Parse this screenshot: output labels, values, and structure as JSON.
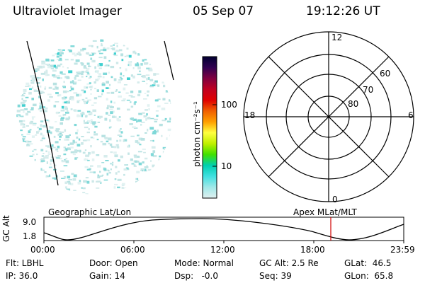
{
  "header": {
    "instrument": "Ultraviolet Imager",
    "date": "05 Sep 07",
    "time": "19:12:26 UT"
  },
  "colorbar": {
    "unit_label": "photon cm⁻²s⁻¹",
    "ticks": [
      "100",
      "10"
    ],
    "stops": [
      "#000030",
      "#300050",
      "#800040",
      "#c00020",
      "#e00000",
      "#f06000",
      "#ffa000",
      "#ffff40",
      "#c0f000",
      "#40e000",
      "#00d0b0",
      "#40e0e0",
      "#a0e8e8",
      "#e0f0f0"
    ]
  },
  "polar": {
    "hour_labels": {
      "top": "12",
      "left": "18",
      "right": "6",
      "bottom": "0"
    },
    "lat_labels": [
      "60",
      "70",
      "80"
    ]
  },
  "timeline": {
    "left_label": "Geographic Lat/Lon",
    "right_label": "Apex MLat/MLT",
    "ylabel": "GC Alt",
    "ymax": "9.0",
    "ymin": "1.8",
    "ticks": [
      "00:00",
      "06:00",
      "12:00",
      "18:00",
      "23:59"
    ],
    "marker_time": "19:12"
  },
  "info": {
    "flt": "Flt: LBHL",
    "ip": "IP: 36.0",
    "door": "Door: Open",
    "gain": "Gain: 14",
    "mode": "Mode: Normal",
    "dsp": "Dsp:   -0.0",
    "gcalt": "GC Alt: 2.5 Re",
    "seq": "Seq: 39",
    "glat": "GLat:  46.5",
    "glon": "GLon:  65.8"
  }
}
